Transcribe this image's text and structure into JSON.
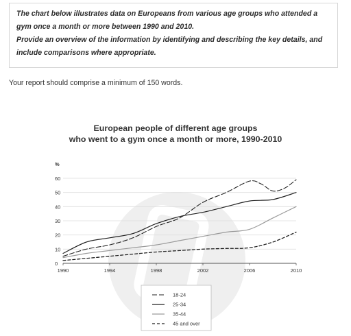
{
  "task": {
    "lines": [
      "The chart below illustrates data on Europeans from various age groups who attended a",
      "gym once a month or more between 1990 and 2010.",
      "Provide an overview of the information by identifying and describing the key details, and",
      "include comparisons where appropriate."
    ],
    "instruction": "Your report should comprise a minimum of 150 words."
  },
  "chart_data": {
    "type": "line",
    "title": [
      "European people of different age groups",
      "who went to a gym once a month or more, 1990-2010"
    ],
    "ylabel": "%",
    "xlabel": "",
    "xlim": [
      1990,
      2010
    ],
    "ylim": [
      0,
      60
    ],
    "x_ticks": [
      1990,
      1994,
      1998,
      2002,
      2006,
      2010
    ],
    "y_ticks": [
      0,
      10,
      20,
      30,
      40,
      50,
      60
    ],
    "grid": "horizontal",
    "legend": "bottom-center",
    "colors": {
      "dark": "#222222",
      "grey": "#9a9a9a",
      "grid": "#dddddd",
      "watermark": "#efefef"
    },
    "series": [
      {
        "name": "18-24",
        "style": "dash-dark",
        "x": [
          1990,
          1992,
          1994,
          1996,
          1998,
          2000,
          2002,
          2004,
          2006,
          2007,
          2008,
          2009,
          2010
        ],
        "y": [
          5,
          10,
          13,
          18,
          26,
          32,
          43,
          50,
          58,
          56,
          51,
          53,
          59
        ]
      },
      {
        "name": "25-34",
        "style": "solid-dark",
        "x": [
          1990,
          1992,
          1994,
          1996,
          1998,
          2000,
          2002,
          2004,
          2006,
          2008,
          2010
        ],
        "y": [
          7,
          15,
          18,
          21,
          28,
          33,
          36,
          40,
          44,
          45,
          50
        ]
      },
      {
        "name": "35-44",
        "style": "solid-grey",
        "x": [
          1990,
          1992,
          1994,
          1996,
          1998,
          2000,
          2002,
          2004,
          2006,
          2008,
          2010
        ],
        "y": [
          4,
          7,
          9,
          11,
          13,
          16,
          19,
          22,
          24,
          32,
          40
        ]
      },
      {
        "name": "45 and over",
        "style": "dash-heavy",
        "x": [
          1990,
          1992,
          1994,
          1996,
          1998,
          2000,
          2002,
          2004,
          2006,
          2008,
          2010
        ],
        "y": [
          2,
          3.5,
          5,
          6.5,
          8,
          9,
          10,
          10.5,
          11,
          15,
          22
        ]
      }
    ]
  }
}
